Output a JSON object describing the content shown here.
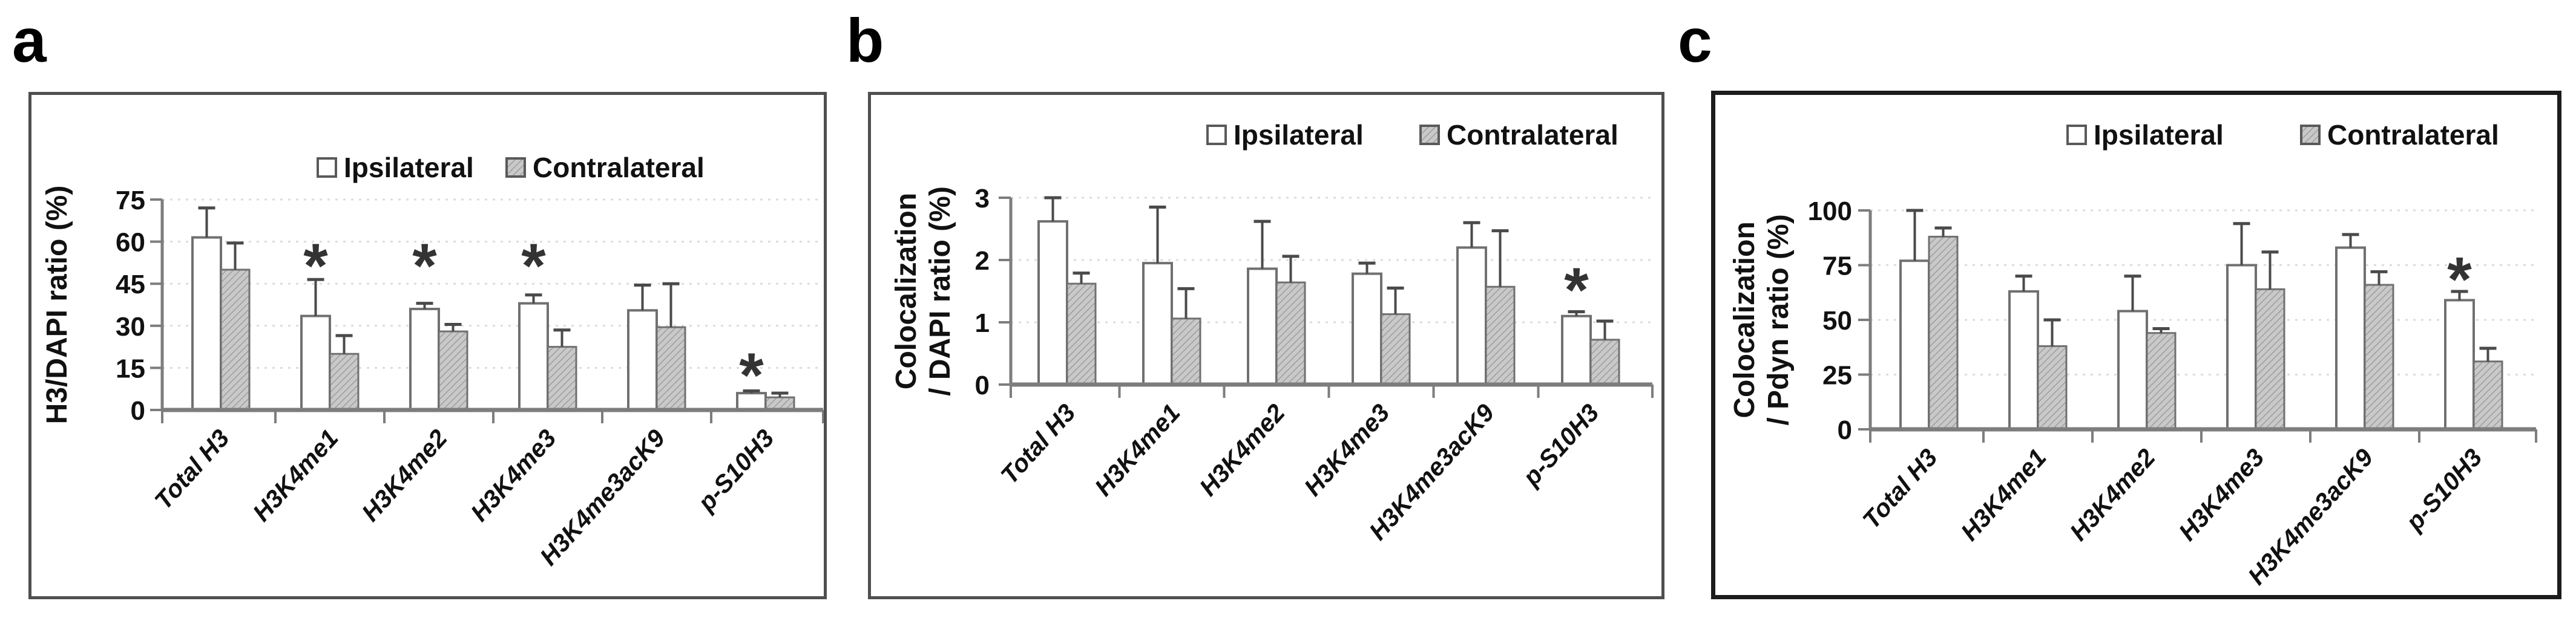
{
  "figure": {
    "panels": [
      {
        "letter": "a"
      },
      {
        "letter": "b"
      },
      {
        "letter": "c"
      }
    ]
  },
  "colors": {
    "ipsilateral_fill": "#ffffff",
    "contralateral_fill": "#c9c9c9",
    "contralateral_hatch_line": "#9d9d9d",
    "bar_outline": "#707070",
    "error_bar": "#4a4a4a",
    "axis": "#7d7d7d",
    "gridline": "#dcdcdc",
    "text": "#111111",
    "star": "#333333"
  },
  "chart_data": [
    {
      "type": "bar",
      "panel": "a",
      "ylabel_lines": [
        "H3/DAPI ratio (%)"
      ],
      "ylim": [
        0,
        75
      ],
      "yticks": [
        0,
        15,
        30,
        45,
        60,
        75
      ],
      "grid": "dashed-horizontal",
      "legend_position": "top-right",
      "categories": [
        "Total  H3",
        "H3K4me1",
        "H3K4me2",
        "H3K4me3",
        "H3K4me3acK9",
        "p-S10H3"
      ],
      "series": [
        {
          "name": "Ipsilateral",
          "values": [
            61.5,
            33.5,
            36,
            38,
            35.5,
            6
          ],
          "errors_up": [
            10.5,
            13,
            2,
            3,
            9,
            0.8
          ]
        },
        {
          "name": "Contralateral",
          "values": [
            50,
            20,
            28,
            22.5,
            29.5,
            4.5
          ],
          "errors_up": [
            9.5,
            6.5,
            2.5,
            6,
            15.5,
            1.5
          ]
        }
      ],
      "significance_stars": [
        {
          "category_index": 1,
          "above_value": 55
        },
        {
          "category_index": 2,
          "above_value": 55
        },
        {
          "category_index": 3,
          "above_value": 55
        },
        {
          "category_index": 5,
          "above_value": 16
        }
      ]
    },
    {
      "type": "bar",
      "panel": "b",
      "ylabel_lines": [
        "Colocalization",
        "/ DAPI ratio (%)"
      ],
      "ylim": [
        0,
        3
      ],
      "yticks": [
        0,
        1,
        2,
        3
      ],
      "grid": "dashed-horizontal",
      "legend_position": "top-right",
      "categories": [
        "Total H3",
        "H3K4me1",
        "H3K4me2",
        "H3K4me3",
        "H3K4me3acK9",
        "p-S10H3"
      ],
      "series": [
        {
          "name": "Ipsilateral",
          "values": [
            2.62,
            1.95,
            1.86,
            1.78,
            2.2,
            1.1
          ],
          "errors_up": [
            0.38,
            0.9,
            0.76,
            0.17,
            0.4,
            0.07
          ]
        },
        {
          "name": "Contralateral",
          "values": [
            1.62,
            1.06,
            1.64,
            1.13,
            1.57,
            0.72
          ],
          "errors_up": [
            0.17,
            0.48,
            0.42,
            0.42,
            0.9,
            0.3
          ]
        }
      ],
      "significance_stars": [
        {
          "category_index": 5,
          "above_value": 1.68
        }
      ]
    },
    {
      "type": "bar",
      "panel": "c",
      "ylabel_lines": [
        "Colocalization",
        "/ Pdyn ratio (%)"
      ],
      "ylim": [
        0,
        100
      ],
      "yticks": [
        0,
        25,
        50,
        75,
        100
      ],
      "grid": "dashed-horizontal",
      "legend_position": "top-right",
      "categories": [
        "Total H3",
        "H3K4me1",
        "H3K4me2",
        "H3K4me3",
        "H3K4me3acK9",
        "p-S10H3"
      ],
      "series": [
        {
          "name": "Ipsilateral",
          "values": [
            77,
            63,
            54,
            75,
            83,
            59
          ],
          "errors_up": [
            23,
            7,
            16,
            19,
            6,
            4
          ]
        },
        {
          "name": "Contralateral",
          "values": [
            88,
            38,
            44,
            64,
            66,
            31
          ],
          "errors_up": [
            4,
            12,
            2,
            17,
            6,
            6
          ]
        }
      ],
      "significance_stars": [
        {
          "category_index": 5,
          "above_value": 73
        }
      ]
    }
  ]
}
